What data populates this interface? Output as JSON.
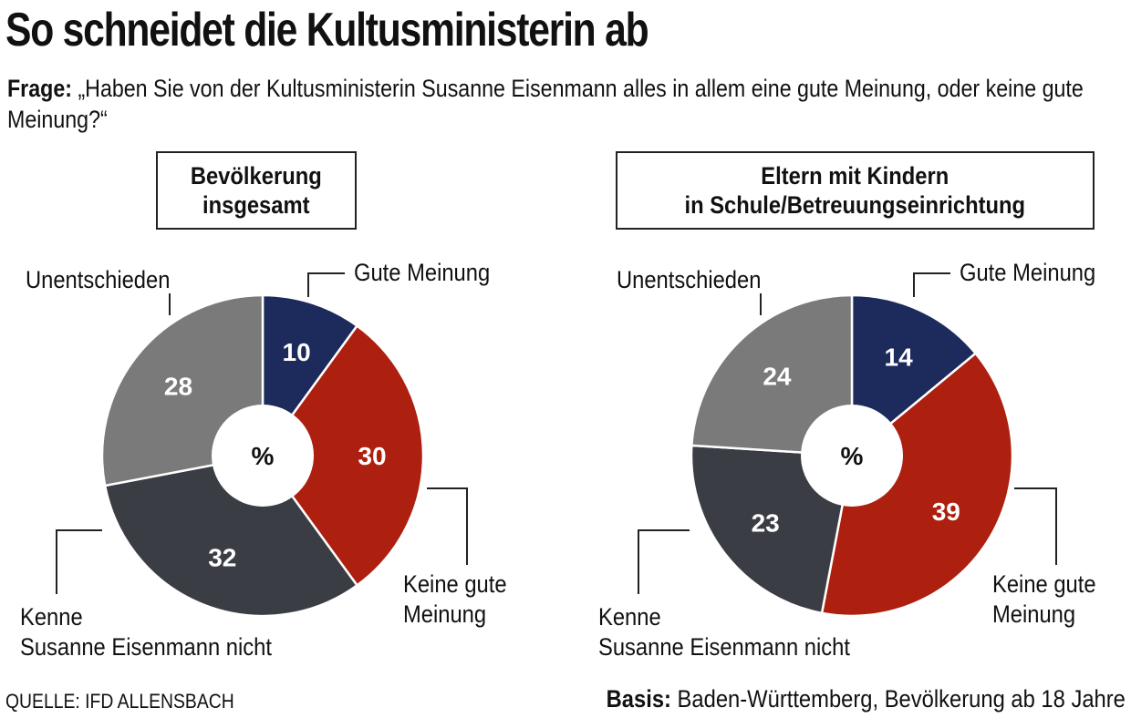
{
  "title": "So schneidet die Kultusministerin ab",
  "question": {
    "label": "Frage:",
    "text": "„Haben Sie von der Kultusministerin Susanne Eisenmann alles in allem eine gute Meinung, oder keine gute Meinung?“"
  },
  "footer": {
    "source": "QUELLE: IFD ALLENSBACH",
    "basis_label": "Basis:",
    "basis_text": "Baden-Württemberg, Bevölkerung ab 18 Jahre"
  },
  "colors": {
    "gute_meinung": "#1c2a5c",
    "keine_gute_meinung": "#ad1f0f",
    "kenne_nicht": "#3a3d44",
    "unentschieden": "#7a7a7a"
  },
  "chart_data": [
    {
      "type": "pie",
      "title": "Bevölkerung insgesamt",
      "center_label": "%",
      "categories": [
        "Gute Meinung",
        "Keine gute Meinung",
        "Kenne Susanne Eisenmann nicht",
        "Unentschieden"
      ],
      "values": [
        10,
        30,
        32,
        28
      ]
    },
    {
      "type": "pie",
      "title": "Eltern mit Kindern in Schule/Betreuungseinrichtung",
      "center_label": "%",
      "categories": [
        "Gute Meinung",
        "Keine gute Meinung",
        "Kenne Susanne Eisenmann nicht",
        "Unentschieden"
      ],
      "values": [
        14,
        39,
        23,
        24
      ]
    }
  ]
}
